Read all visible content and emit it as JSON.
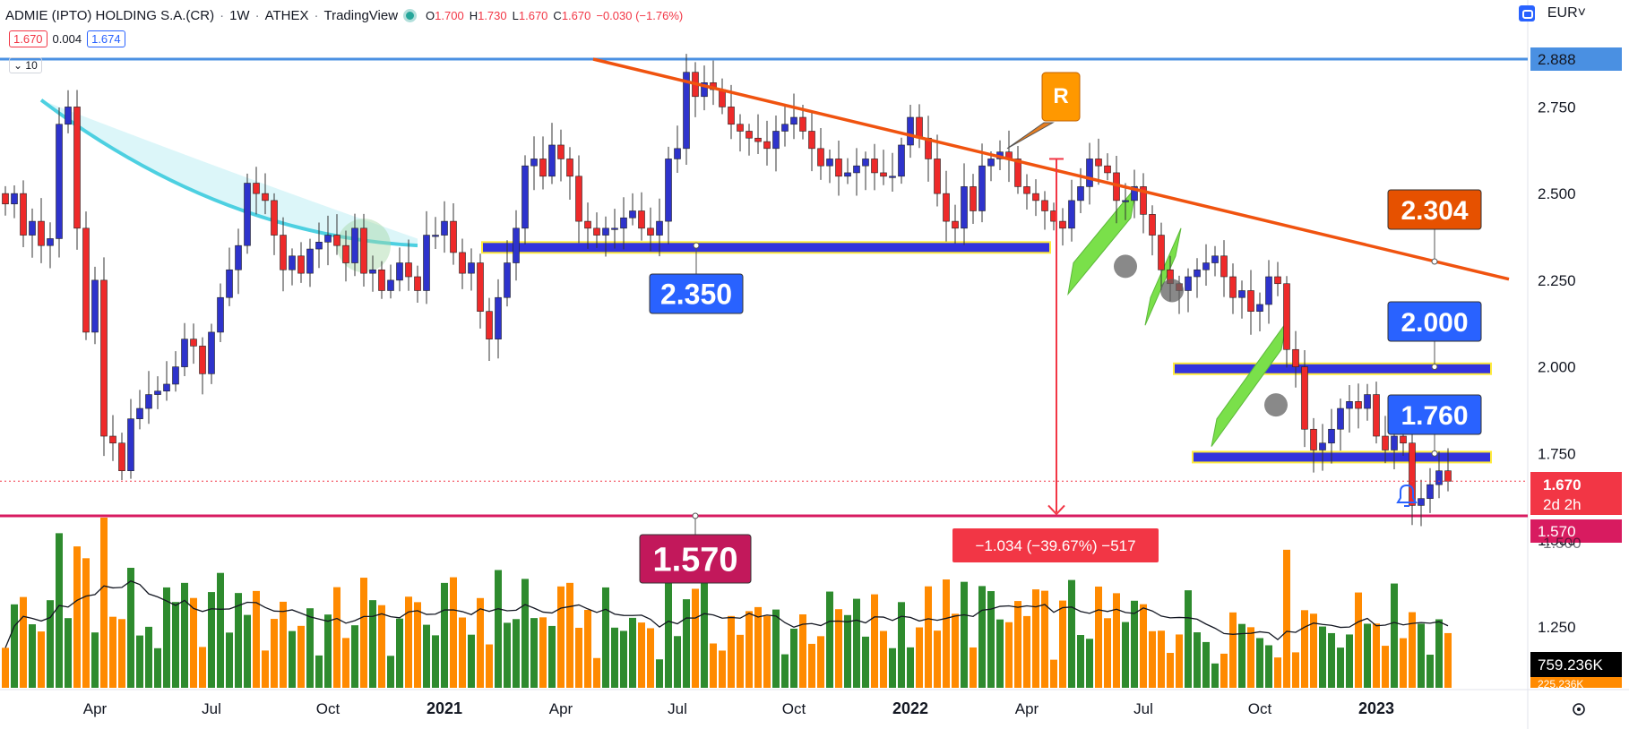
{
  "header": {
    "symbol": "ADMIE (IPTO) HOLDING S.A.(CR)",
    "interval": "1W",
    "exchange": "ATHEX",
    "source": "TradingView",
    "o_label": "O",
    "o": "1.700",
    "h_label": "H",
    "h": "1.730",
    "l_label": "L",
    "l": "1.670",
    "c_label": "C",
    "c": "1.670",
    "change": "−0.030 (−1.76%)",
    "bid": "1.670",
    "spread": "0.004",
    "ask": "1.674",
    "ma_length": "10",
    "currency": "EUR"
  },
  "colors": {
    "up": "#2e33cc",
    "down": "#ee2a2a",
    "vol_up": "#2e8b2e",
    "vol_down": "#ff8a00",
    "trendline": "#f0530f",
    "top_line": "#4a90e2",
    "bottom_line": "#d81b60",
    "curve": "#4dd0e1",
    "zone": "#3333dd",
    "zone_border": "#ffeb3b",
    "channel": "#7ae04a",
    "label_blue": "#2962ff",
    "label_orange": "#e65100",
    "label_pink": "#c2185b"
  },
  "chart_data": {
    "type": "candlestick",
    "title": "ADMIE (IPTO) HOLDING S.A.(CR) · 1W · ATHEX",
    "ylim": [
      1.1,
      2.99
    ],
    "y_ticks": [
      1.25,
      1.5,
      1.75,
      2.0,
      2.25,
      2.5,
      2.75
    ],
    "x_ticks": [
      {
        "label": "Apr",
        "week": 10
      },
      {
        "label": "Jul",
        "week": 23
      },
      {
        "label": "Oct",
        "week": 36
      },
      {
        "label": "2021",
        "week": 49
      },
      {
        "label": "Apr",
        "week": 62
      },
      {
        "label": "Jul",
        "week": 75
      },
      {
        "label": "Oct",
        "week": 88
      },
      {
        "label": "2022",
        "week": 101
      },
      {
        "label": "Apr",
        "week": 114
      },
      {
        "label": "Jul",
        "week": 127
      },
      {
        "label": "Oct",
        "week": 140
      },
      {
        "label": "2023",
        "week": 153
      }
    ],
    "close": [
      2.47,
      2.5,
      2.38,
      2.42,
      2.35,
      2.37,
      2.7,
      2.75,
      2.4,
      2.1,
      2.25,
      1.8,
      1.78,
      1.7,
      1.85,
      1.88,
      1.92,
      1.93,
      1.95,
      2.0,
      2.08,
      2.06,
      1.98,
      2.1,
      2.2,
      2.28,
      2.35,
      2.53,
      2.5,
      2.48,
      2.38,
      2.28,
      2.32,
      2.27,
      2.34,
      2.36,
      2.38,
      2.35,
      2.3,
      2.4,
      2.27,
      2.28,
      2.22,
      2.25,
      2.3,
      2.26,
      2.22,
      2.38,
      2.38,
      2.42,
      2.33,
      2.27,
      2.3,
      2.16,
      2.08,
      2.2,
      2.3,
      2.4,
      2.58,
      2.6,
      2.55,
      2.64,
      2.6,
      2.55,
      2.42,
      2.4,
      2.38,
      2.4,
      2.4,
      2.43,
      2.45,
      2.4,
      2.38,
      2.42,
      2.6,
      2.63,
      2.85,
      2.78,
      2.82,
      2.8,
      2.75,
      2.7,
      2.68,
      2.66,
      2.65,
      2.63,
      2.68,
      2.7,
      2.72,
      2.68,
      2.63,
      2.58,
      2.6,
      2.55,
      2.56,
      2.58,
      2.6,
      2.56,
      2.55,
      2.55,
      2.64,
      2.72,
      2.66,
      2.6,
      2.5,
      2.42,
      2.4,
      2.52,
      2.45,
      2.58,
      2.6,
      2.62,
      2.6,
      2.52,
      2.5,
      2.48,
      2.45,
      2.42,
      2.4,
      2.48,
      2.52,
      2.6,
      2.58,
      2.56,
      2.48,
      2.48,
      2.52,
      2.44,
      2.38,
      2.28,
      2.24,
      2.22,
      2.26,
      2.28,
      2.3,
      2.32,
      2.26,
      2.2,
      2.22,
      2.16,
      2.18,
      2.26,
      2.24,
      2.05,
      2.0,
      1.82,
      1.76,
      1.78,
      1.82,
      1.88,
      1.9,
      1.88,
      1.92,
      1.8,
      1.76,
      1.8,
      1.78,
      1.6,
      1.62,
      1.66,
      1.7,
      1.67
    ],
    "volume_ylim": [
      0,
      1.0
    ],
    "volume_label": "759.236K",
    "volume_label2": "225.236K",
    "trendline": [
      2.888,
      2.253
    ],
    "drawings": {
      "support_2_350": "2.350",
      "support_1_570": "1.570",
      "zone_2_000": "2.000",
      "zone_1_760": "1.760",
      "trend_2_304": "2.304",
      "resistance_marker": "R",
      "measure": "−1.034 (−39.67%) −517"
    },
    "axis_labels": {
      "top_line": "2.888",
      "last_price": "1.670",
      "countdown": "2d 2h",
      "bottom_line": "1.570",
      "partial_tick": "1.500"
    }
  }
}
